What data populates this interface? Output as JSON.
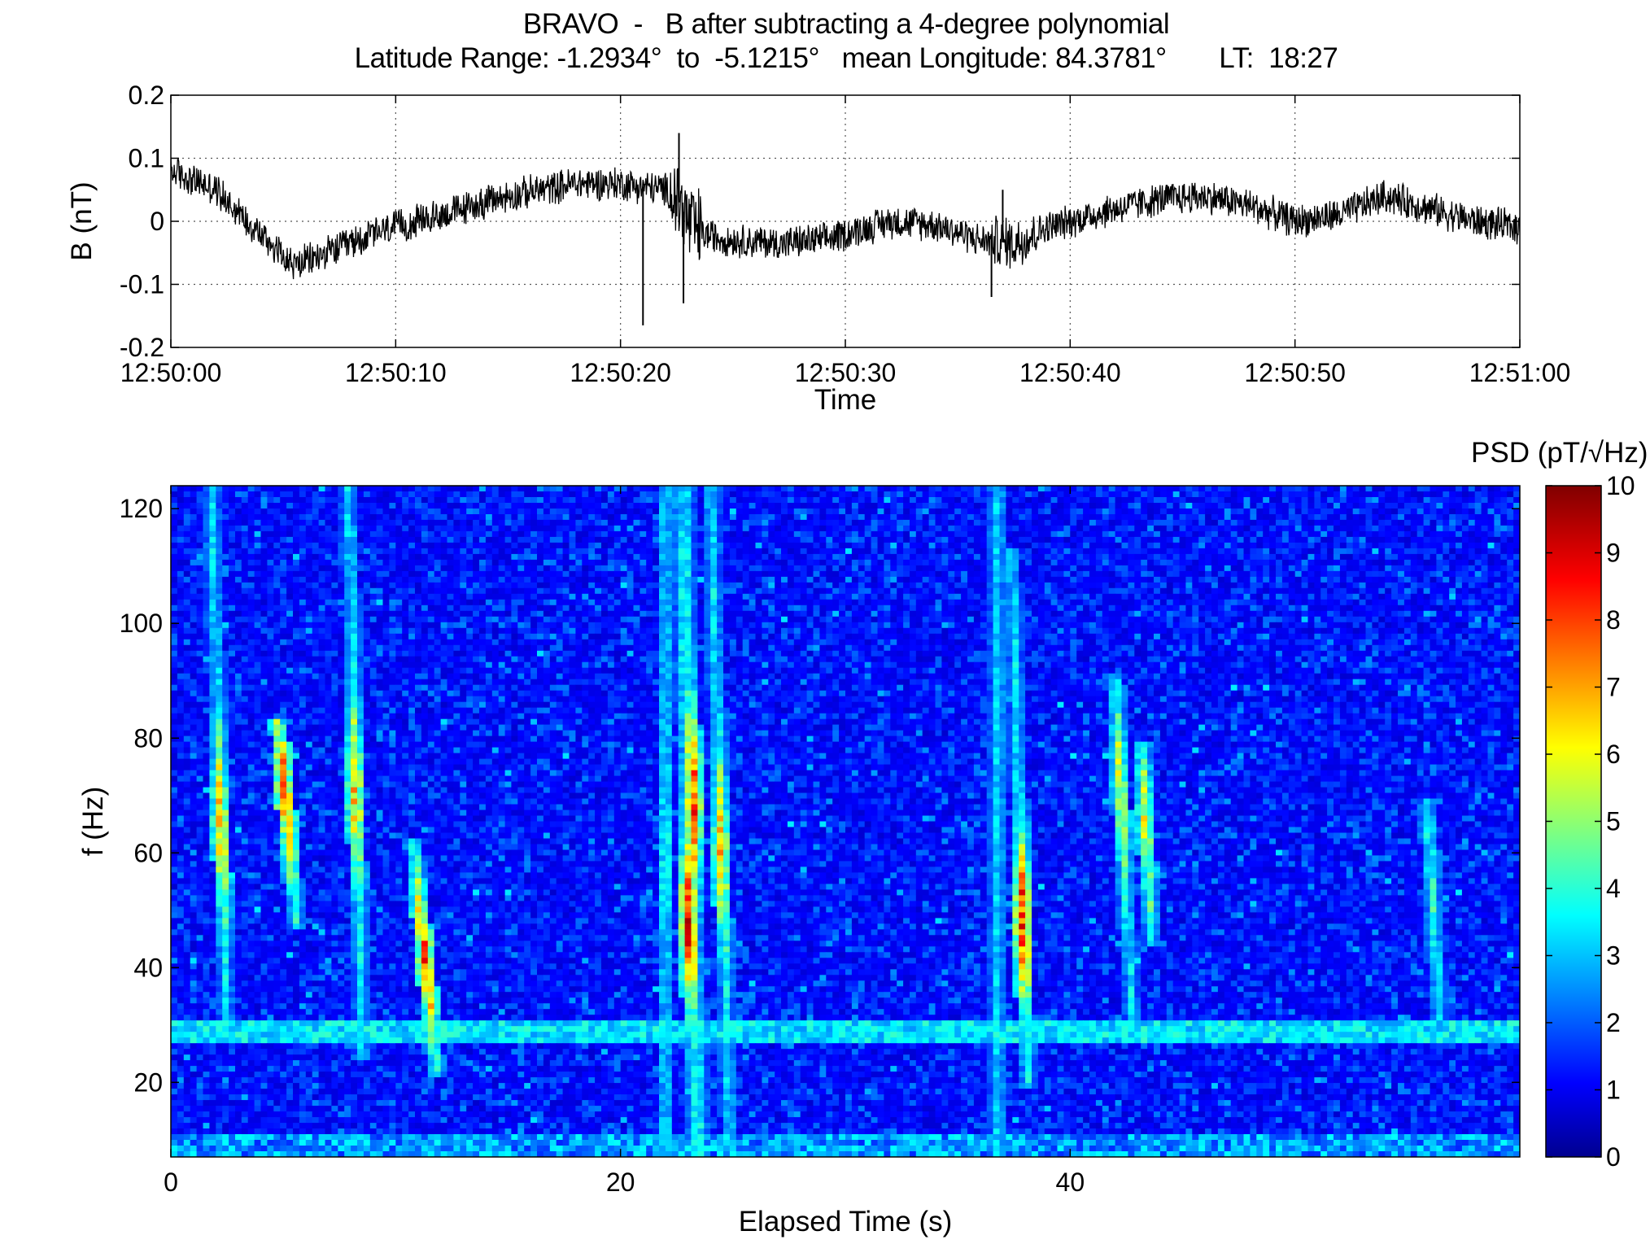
{
  "title": {
    "line1": "BRAVO  -   B after subtracting a 4-degree polynomial",
    "line2": "Latitude Range: -1.2934°  to  -5.1215°   mean Longitude: 84.3781°       LT:  18:27"
  },
  "chart_data": [
    {
      "type": "line",
      "name": "top-timeseries",
      "xlabel": "Time",
      "ylabel": "B  (nT)",
      "x_ticklabels": [
        "12:50:00",
        "12:50:10",
        "12:50:20",
        "12:50:30",
        "12:50:40",
        "12:50:50",
        "12:51:00"
      ],
      "xlim_seconds": [
        0,
        60
      ],
      "ylim": [
        -0.2,
        0.2
      ],
      "y_ticks": [
        -0.2,
        -0.1,
        0,
        0.1,
        0.2
      ],
      "y_ticklabels": [
        "-0.2",
        "-0.1",
        "0",
        "0.1",
        "0.2"
      ],
      "grid": true,
      "color": "#000000",
      "trend": {
        "t": [
          0,
          2,
          4,
          5.5,
          7,
          9,
          12,
          15,
          18,
          20,
          22,
          22.6,
          23,
          23.6,
          25,
          27,
          29,
          30,
          32,
          34,
          36,
          37.5,
          39,
          42,
          44,
          46,
          48,
          50,
          52,
          54,
          56,
          58,
          60
        ],
        "b": [
          0.08,
          0.05,
          -0.02,
          -0.07,
          -0.05,
          -0.02,
          0.01,
          0.04,
          0.06,
          0.06,
          0.05,
          0.03,
          0.0,
          -0.02,
          -0.03,
          -0.035,
          -0.03,
          -0.02,
          -0.0,
          -0.005,
          -0.03,
          -0.035,
          -0.01,
          0.02,
          0.035,
          0.04,
          0.025,
          -0.0,
          0.01,
          0.04,
          0.02,
          -0.0,
          -0.01
        ]
      },
      "noise_amplitude": 0.03,
      "spikes": [
        {
          "t": 21.0,
          "b": -0.165
        },
        {
          "t": 22.6,
          "b": 0.14
        },
        {
          "t": 22.8,
          "b": -0.13
        },
        {
          "t": 36.5,
          "b": -0.12
        },
        {
          "t": 37.0,
          "b": 0.05
        }
      ]
    },
    {
      "type": "heatmap",
      "name": "spectrogram",
      "xlabel": "Elapsed Time (s)",
      "ylabel": "f (Hz)",
      "xlim": [
        0,
        60
      ],
      "ylim": [
        7,
        124
      ],
      "x_ticks": [
        0,
        20,
        40
      ],
      "y_ticks": [
        20,
        40,
        60,
        80,
        100,
        120
      ],
      "colorbar": {
        "label": "PSD (pT/√Hz)",
        "range": [
          0,
          10
        ],
        "ticks": [
          0,
          1,
          2,
          3,
          4,
          5,
          6,
          7,
          8,
          9,
          10
        ],
        "colormap": "jet"
      },
      "background_level": 1.7,
      "hum_band": {
        "f": 29,
        "level": 3.6
      },
      "low_freq_level": 3.2,
      "whistler_traces": [
        {
          "t_top": 1.8,
          "f_top": 124,
          "t_bottom": 2.5,
          "f_bottom": 28,
          "peak": 7.5,
          "peak_f": 65
        },
        {
          "t_top": 4.8,
          "f_top": 82,
          "t_bottom": 5.6,
          "f_bottom": 48,
          "peak": 8.5,
          "peak_f": 70
        },
        {
          "t_top": 7.9,
          "f_top": 124,
          "t_bottom": 8.5,
          "f_bottom": 25,
          "peak": 7.5,
          "peak_f": 70
        },
        {
          "t_top": 10.8,
          "f_top": 62,
          "t_bottom": 11.8,
          "f_bottom": 22,
          "peak": 8.5,
          "peak_f": 42
        },
        {
          "t_top": 22.6,
          "f_top": 124,
          "t_bottom": 23.3,
          "f_bottom": 7,
          "peak": 9.5,
          "peak_f": 48
        },
        {
          "t_top": 22.9,
          "f_top": 124,
          "t_bottom": 23.6,
          "f_bottom": 7,
          "peak": 9.0,
          "peak_f": 70
        },
        {
          "t_top": 24.0,
          "f_top": 124,
          "t_bottom": 24.9,
          "f_bottom": 7,
          "peak": 7.5,
          "peak_f": 60
        },
        {
          "t_top": 22.0,
          "f_top": 124,
          "t_bottom": 22.0,
          "f_bottom": 7,
          "peak": 4.5,
          "peak_f": 60
        },
        {
          "t_top": 37.4,
          "f_top": 112,
          "t_bottom": 38.1,
          "f_bottom": 20,
          "peak": 9.0,
          "peak_f": 48
        },
        {
          "t_top": 42.0,
          "f_top": 90,
          "t_bottom": 42.8,
          "f_bottom": 28,
          "peak": 6.5,
          "peak_f": 70
        },
        {
          "t_top": 43.2,
          "f_top": 78,
          "t_bottom": 43.6,
          "f_bottom": 45,
          "peak": 6.5,
          "peak_f": 65
        },
        {
          "t_top": 36.8,
          "f_top": 124,
          "t_bottom": 36.8,
          "f_bottom": 7,
          "peak": 3.8,
          "peak_f": 60
        },
        {
          "t_top": 55.9,
          "f_top": 68,
          "t_bottom": 56.4,
          "f_bottom": 32,
          "peak": 4.5,
          "peak_f": 55
        }
      ]
    }
  ]
}
